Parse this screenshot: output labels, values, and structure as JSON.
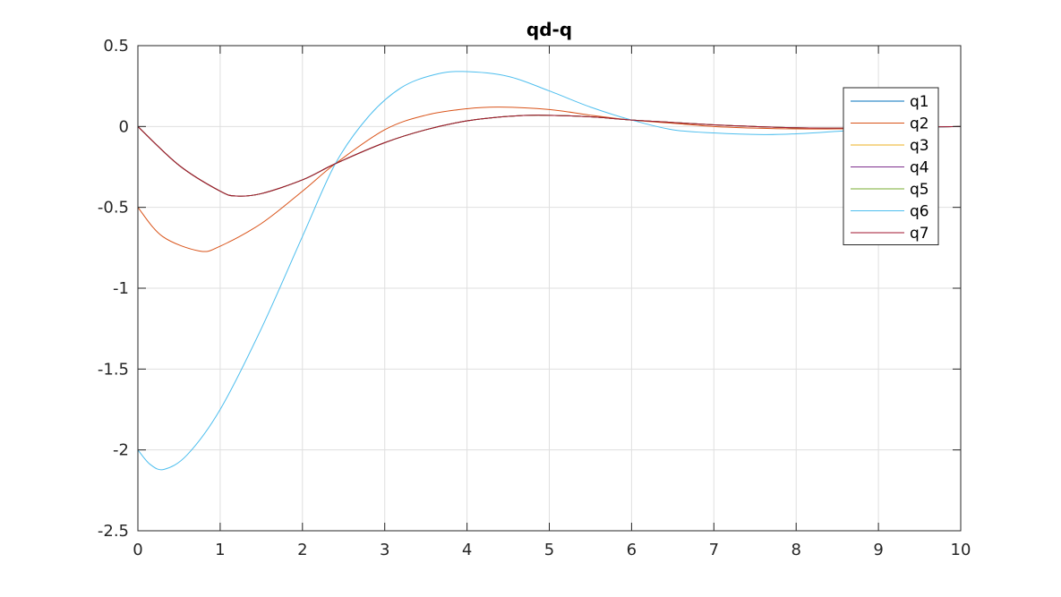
{
  "chart_data": {
    "type": "line",
    "title": "qd-q",
    "xlabel": "",
    "ylabel": "",
    "xlim": [
      0,
      10
    ],
    "ylim": [
      -2.5,
      0.5
    ],
    "xticks": [
      "0",
      "1",
      "2",
      "3",
      "4",
      "5",
      "6",
      "7",
      "8",
      "9",
      "10"
    ],
    "yticks": [
      "0.5",
      "0",
      "-0.5",
      "-1",
      "-1.5",
      "-2",
      "-2.5"
    ],
    "grid": true,
    "legend_position": "top-right",
    "series": [
      {
        "name": "q1",
        "color": "#0072BD",
        "x": [
          0,
          0.5,
          1,
          1.2,
          1.5,
          2,
          2.4,
          3,
          3.5,
          4,
          4.5,
          4.9,
          5.5,
          6,
          6.5,
          7,
          7.5,
          8,
          8.5,
          9,
          9.5,
          10
        ],
        "y": [
          0,
          -0.24,
          -0.4,
          -0.43,
          -0.415,
          -0.33,
          -0.23,
          -0.1,
          -0.02,
          0.035,
          0.063,
          0.07,
          0.06,
          0.04,
          0.025,
          0.01,
          0.0,
          -0.008,
          -0.01,
          -0.008,
          -0.004,
          0
        ]
      },
      {
        "name": "q2",
        "color": "#D95319",
        "x": [
          0,
          0.3,
          0.75,
          1,
          1.5,
          2,
          2.4,
          3,
          3.5,
          4,
          4.4,
          5,
          5.5,
          6,
          6.5,
          7,
          7.5,
          8,
          8.5,
          9,
          9.5,
          10
        ],
        "y": [
          -0.5,
          -0.68,
          -0.77,
          -0.74,
          -0.6,
          -0.4,
          -0.23,
          -0.02,
          0.07,
          0.11,
          0.12,
          0.105,
          0.07,
          0.04,
          0.02,
          0.0,
          -0.01,
          -0.015,
          -0.015,
          -0.01,
          -0.005,
          0
        ]
      },
      {
        "name": "q3",
        "color": "#EDB120",
        "x": [
          0,
          0.5,
          1,
          1.2,
          1.5,
          2,
          2.4,
          3,
          3.5,
          4,
          4.5,
          4.9,
          5.5,
          6,
          6.5,
          7,
          7.5,
          8,
          8.5,
          9,
          9.5,
          10
        ],
        "y": [
          0,
          -0.24,
          -0.4,
          -0.43,
          -0.415,
          -0.33,
          -0.23,
          -0.1,
          -0.02,
          0.035,
          0.063,
          0.07,
          0.06,
          0.04,
          0.025,
          0.01,
          0.0,
          -0.008,
          -0.01,
          -0.008,
          -0.004,
          0
        ]
      },
      {
        "name": "q4",
        "color": "#7E2F8E",
        "x": [
          0,
          0.5,
          1,
          1.2,
          1.5,
          2,
          2.4,
          3,
          3.5,
          4,
          4.5,
          4.9,
          5.5,
          6,
          6.5,
          7,
          7.5,
          8,
          8.5,
          9,
          9.5,
          10
        ],
        "y": [
          0,
          -0.24,
          -0.4,
          -0.43,
          -0.415,
          -0.33,
          -0.23,
          -0.1,
          -0.02,
          0.035,
          0.063,
          0.07,
          0.06,
          0.04,
          0.025,
          0.01,
          0.0,
          -0.008,
          -0.01,
          -0.008,
          -0.004,
          0
        ]
      },
      {
        "name": "q5",
        "color": "#77AC30",
        "x": [
          0,
          0.5,
          1,
          1.2,
          1.5,
          2,
          2.4,
          3,
          3.5,
          4,
          4.5,
          4.9,
          5.5,
          6,
          6.5,
          7,
          7.5,
          8,
          8.5,
          9,
          9.5,
          10
        ],
        "y": [
          0,
          -0.24,
          -0.4,
          -0.43,
          -0.415,
          -0.33,
          -0.23,
          -0.1,
          -0.02,
          0.035,
          0.063,
          0.07,
          0.06,
          0.04,
          0.025,
          0.01,
          0.0,
          -0.008,
          -0.01,
          -0.008,
          -0.004,
          0
        ]
      },
      {
        "name": "q6",
        "color": "#4DBEEE",
        "x": [
          0,
          0.15,
          0.32,
          0.6,
          1,
          1.5,
          2,
          2.4,
          2.8,
          3.2,
          3.6,
          3.95,
          4.5,
          5,
          5.5,
          6,
          6.5,
          7,
          7.6,
          8,
          8.5,
          9,
          9.5,
          10
        ],
        "y": [
          -2,
          -2.09,
          -2.12,
          -2.03,
          -1.75,
          -1.25,
          -0.68,
          -0.23,
          0.06,
          0.24,
          0.32,
          0.34,
          0.31,
          0.22,
          0.12,
          0.04,
          -0.02,
          -0.04,
          -0.05,
          -0.045,
          -0.03,
          -0.015,
          -0.005,
          0
        ]
      },
      {
        "name": "q7",
        "color": "#A2142F",
        "x": [
          0,
          0.5,
          1,
          1.2,
          1.5,
          2,
          2.4,
          3,
          3.5,
          4,
          4.5,
          4.9,
          5.5,
          6,
          6.5,
          7,
          7.5,
          8,
          8.5,
          9,
          9.5,
          10
        ],
        "y": [
          0,
          -0.24,
          -0.4,
          -0.43,
          -0.415,
          -0.33,
          -0.23,
          -0.1,
          -0.02,
          0.035,
          0.063,
          0.07,
          0.06,
          0.04,
          0.025,
          0.01,
          0.0,
          -0.008,
          -0.01,
          -0.008,
          -0.004,
          0
        ]
      }
    ]
  }
}
